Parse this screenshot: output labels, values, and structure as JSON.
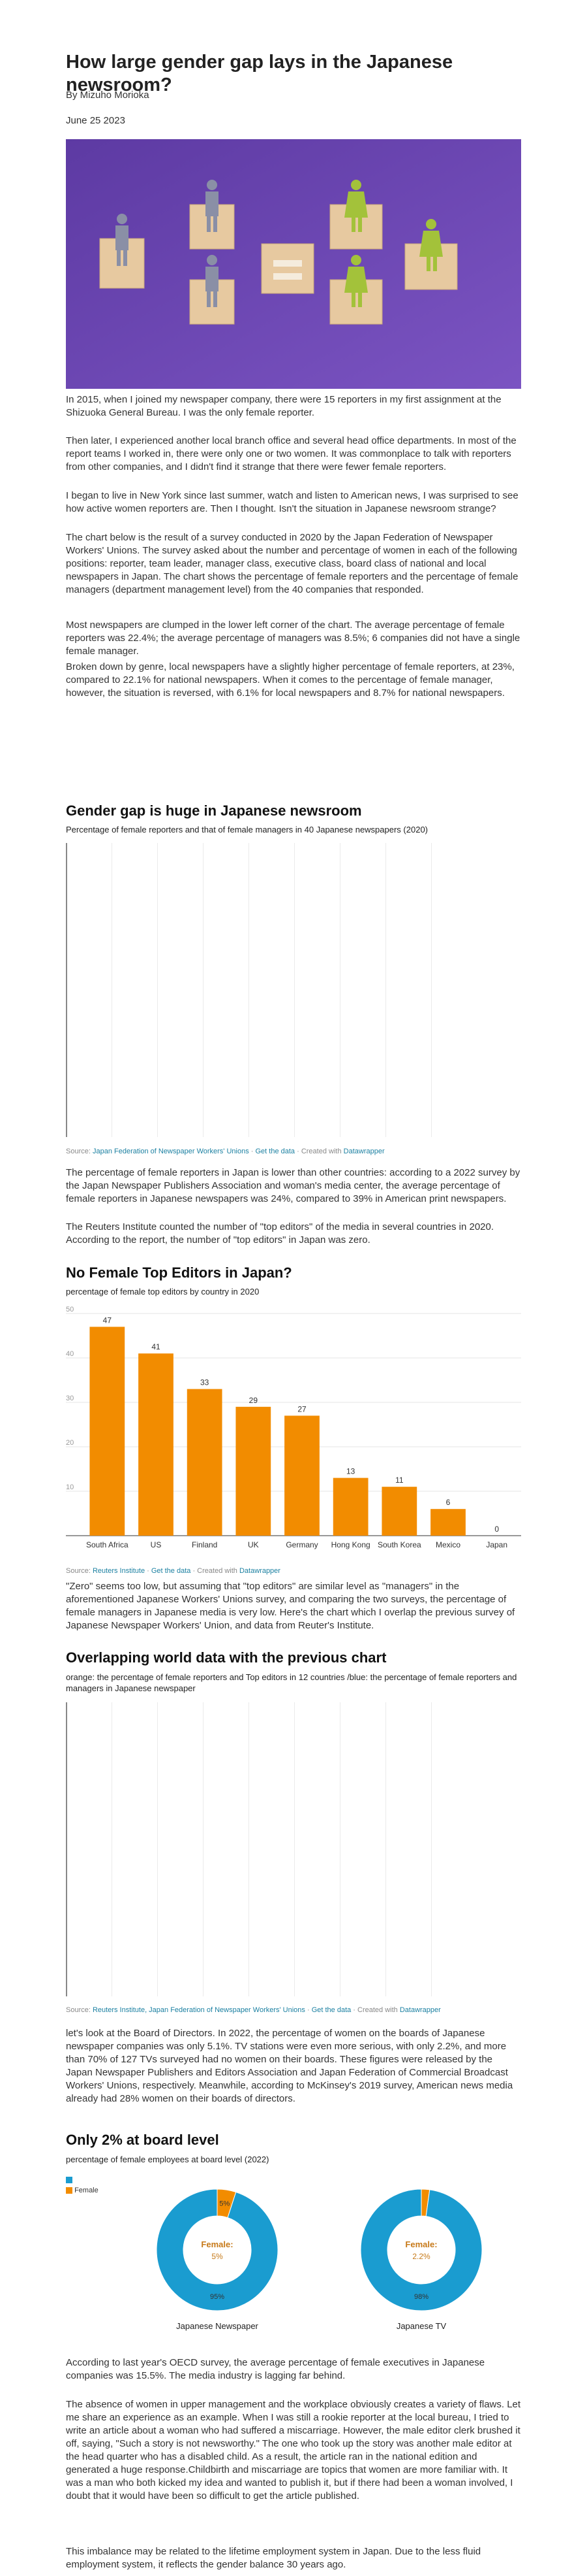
{
  "article": {
    "title": "How large gender gap lays in the Japanese newsroom?",
    "author": "By Mizuho Morioka",
    "date": "June 25 2023"
  },
  "paragraphs_1": [
    "In 2015, when I joined my newspaper company, there were 15 reporters in my first assignment at the Shizuoka General Bureau. I was the only female reporter.",
    "Then later, I experienced another local branch office and several head office departments. In most of the report teams I worked in, there were only one or two women. It was commonplace to talk with reporters from other companies, and I didn't find it strange that there were fewer female reporters.",
    "I began to live in New York since last summer, watch and listen to American news, I was surprised to see how active women reporters are. Then I thought. Isn't the situation in Japanese newsroom strange?",
    "The chart below is the result of a survey conducted in 2020 by the Japan Federation of Newspaper Workers' Unions. The survey asked about the number and percentage of women in each of the following positions: reporter, team leader, manager class, executive class, board class of national and local newspapers in Japan. The chart shows the percentage of female reporters and the percentage of female managers (department management level) from the 40 companies that responded.",
    "Most newspapers are clumped in the lower left corner of the chart. The average percentage of female reporters was 22.4%; the average percentage of managers was 8.5%; 6 companies did not have a single female manager.",
    "Broken down by genre, local newspapers have a slightly higher percentage of female reporters, at 23%, compared to 22.1% for national newspapers. When it comes to the percentage of female manager, however, the situation is reversed, with 6.1% for local newspapers and 8.7% for national newspapers."
  ],
  "chart1": {
    "heading": "Gender gap is huge in Japanese newsroom",
    "subtitle": "Percentage of female reporters and that of female managers in 40 Japanese newspapers (2020)",
    "source_prefix": "Source: ",
    "source_link": "Japan Federation of Newspaper Workers' Unions",
    "get_data": "Get the data",
    "created_prefix": "Created with ",
    "created_link": "Datawrapper"
  },
  "paragraphs_2": [
    "The percentage of female reporters in Japan is lower than other countries: according to a 2022 survey by the Japan Newspaper Publishers Association and woman's media center, the average percentage of female reporters in Japanese newspapers was 24%, compared to 39% in American print newspapers.",
    "The Reuters Institute counted the number of \"top editors\" of the media in several countries in 2020. According to the report, the number of \"top editors\" in Japan was zero."
  ],
  "chart2": {
    "heading": "No Female Top Editors in Japan?",
    "source_prefix": "Source: ",
    "source_link": "Reuters Institute",
    "get_data": "Get the data",
    "created_prefix": "Created with ",
    "created_link": "Datawrapper"
  },
  "chart_data": {
    "type": "bar",
    "title": "percentage of female top editors by country in 2020",
    "categories": [
      "South Africa",
      "US",
      "Finland",
      "UK",
      "Germany",
      "Hong Kong",
      "South Korea",
      "Mexico",
      "Japan"
    ],
    "values": [
      47,
      41,
      33,
      29,
      27,
      13,
      11,
      6,
      0
    ],
    "ylim": [
      0,
      50
    ],
    "yticks": [
      0,
      10,
      20,
      30,
      40,
      50
    ],
    "bar_color": "#f28c00",
    "grid": true
  },
  "paragraphs_3": [
    "\"Zero\" seems too low, but assuming that \"top editors\" are similar level as \"managers\" in the aforementioned Japanese Workers' Unions survey, and comparing the two surveys, the percentage of female managers in Japanese media is very low. Here's the chart which I overlap the previous survey of Japanese Newspaper Workers' Union, and data from Reuter's Institute."
  ],
  "chart3": {
    "heading": "Overlapping world data with the previous chart",
    "subtitle": "orange: the percentage of female reporters and Top editors in 12 countries /blue: the percentage of female reporters and managers in Japanese newspaper",
    "source_prefix": "Source: ",
    "source_link": "Reuters Institute, Japan Federation of Newspaper Workers' Unions",
    "get_data": "Get the data",
    "created_prefix": "Created with ",
    "created_link": "Datawrapper"
  },
  "paragraphs_4": [
    "let's look at the Board of Directors. In 2022, the percentage of women on the boards of Japanese newspaper companies was only 5.1%. TV stations were even more serious, with only 2.2%, and more than 70% of 127 TVs surveyed had no women on their boards. These figures were released by the Japan Newspaper Publishers and Editors Association and Japan Federation of Commercial Broadcast Workers' Unions, respectively. Meanwhile, according to McKinsey's 2019 survey, American news media already had 28% women on their boards of directors."
  ],
  "chart4": {
    "heading": "Only 2% at board level",
    "subtitle": "percentage of female employees at board level (2022)",
    "legend": [
      {
        "label": "",
        "color": "#1a9cd0"
      },
      {
        "label": "Female",
        "color": "#f28c00"
      }
    ],
    "male_color": "#1a9cd0",
    "female_color": "#f28c00",
    "pies": [
      {
        "name": "Japanese Newspaper",
        "female": 5,
        "male": 95,
        "female_label": "5%",
        "male_label": "95%",
        "center_title": "Female:",
        "center_value": "5%"
      },
      {
        "name": "Japanese TV",
        "female": 2.2,
        "male": 98,
        "female_label": "",
        "male_label": "98%",
        "center_title": "Female:",
        "center_value": "2.2%"
      }
    ]
  },
  "paragraphs_5": [
    "According to last year's OECD survey, the average percentage of female executives in Japanese companies was 15.5%. The media industry is lagging far behind.",
    "The absence of women in upper management and the workplace obviously creates a variety of flaws. Let me share an experience as an example. When I was still a rookie reporter at the local bureau, I tried to write an article about a woman who had suffered a miscarriage. However, the male editor clerk brushed it off, saying, \"Such a story is not newsworthy.\" The one who took up the story was another male editor at the head quarter who has a disabled child. As a result, the article ran in the national edition and generated a huge response.Childbirth and miscarriage are topics that women are more familiar with. It was a man who both kicked my idea and wanted to publish it, but if there had been a woman involved, I doubt that it would have been so difficult to get the article published.",
    "This imbalance may be related to the lifetime employment system in Japan. Due to the less fluid employment system, it reflects the gender balance 30 years ago."
  ]
}
